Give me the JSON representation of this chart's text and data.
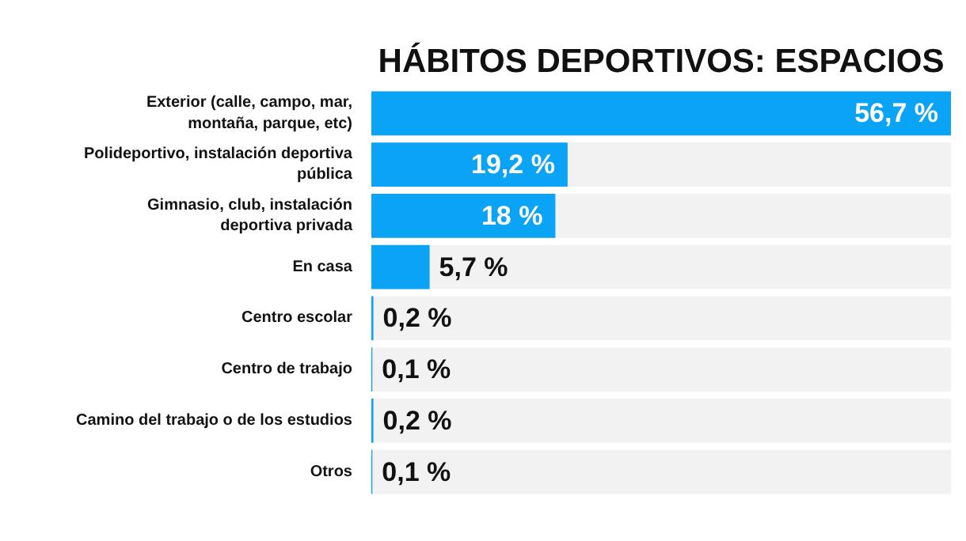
{
  "chart_data": {
    "type": "bar",
    "orientation": "horizontal",
    "title": "HÁBITOS DEPORTIVOS: ESPACIOS",
    "categories": [
      "Exterior (calle, campo, mar, montaña, parque, etc)",
      "Polideportivo, instalación deportiva pública",
      "Gimnasio, club, instalación deportiva privada",
      "En casa",
      "Centro escolar",
      "Centro de trabajo",
      "Camino del trabajo o de los estudios",
      "Otros"
    ],
    "values": [
      56.7,
      19.2,
      18,
      5.7,
      0.2,
      0.1,
      0.2,
      0.1
    ],
    "value_labels": [
      "56,7 %",
      "19,2 %",
      "18 %",
      "5,7 %",
      "0,2 %",
      "0,1 %",
      "0,2 %",
      "0,1 %"
    ],
    "color": "#0aa3f5",
    "xlim": [
      0,
      56.7
    ],
    "tick_labels": "y",
    "grid": false
  }
}
